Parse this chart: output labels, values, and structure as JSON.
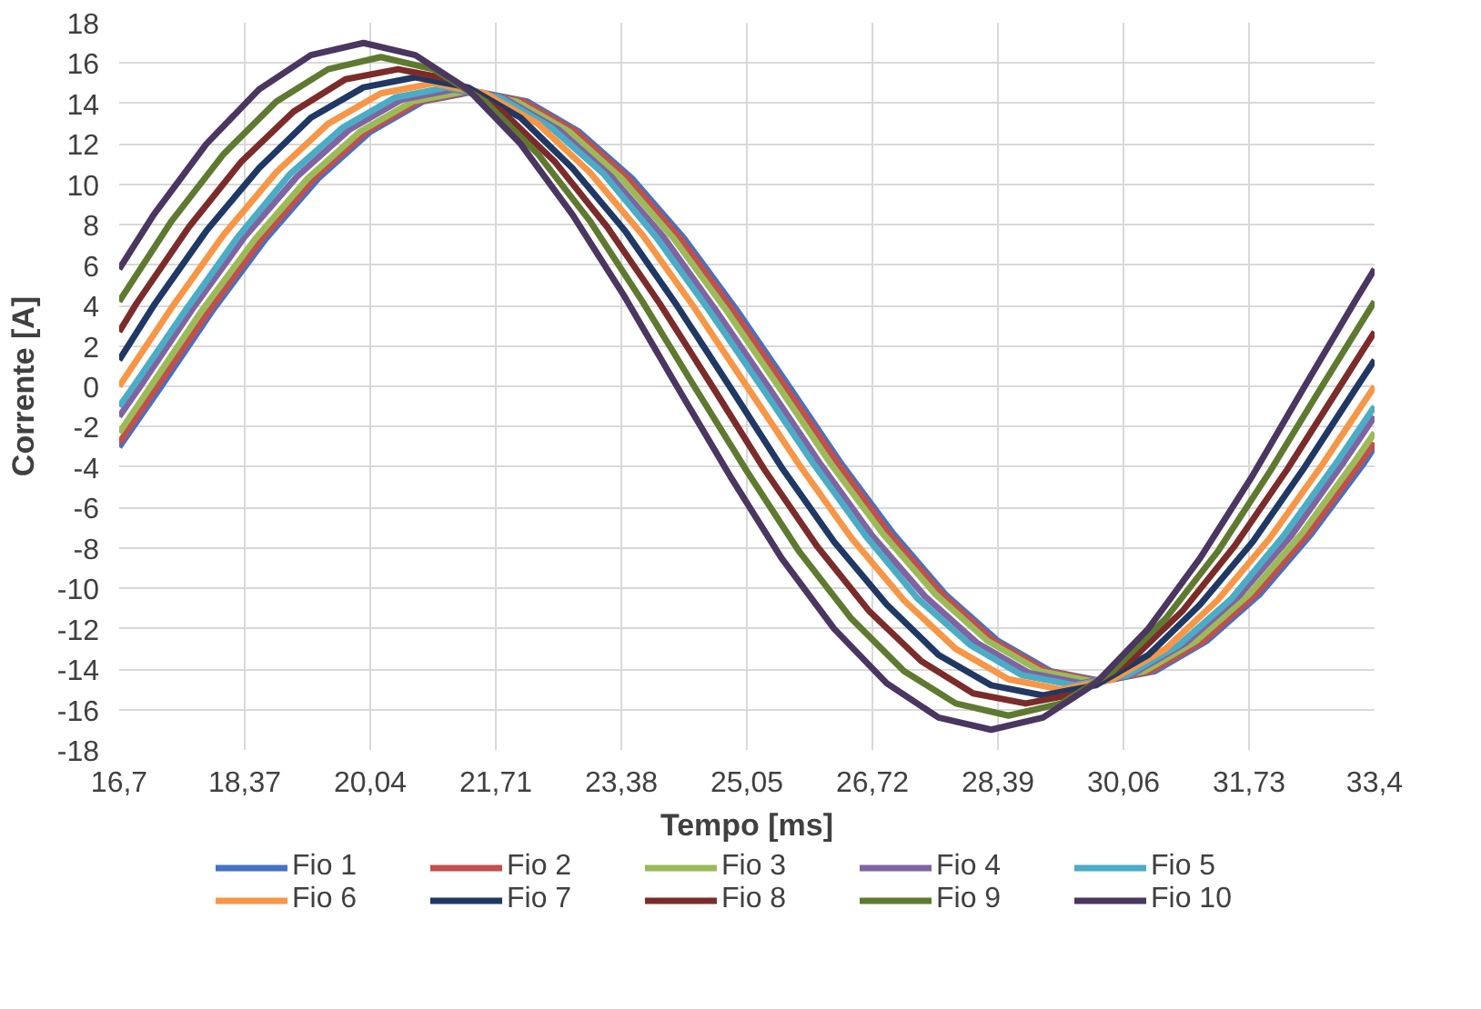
{
  "chart_data": {
    "type": "line",
    "xlabel": "Tempo [ms]",
    "ylabel": "Corrente [A]",
    "xlim": [
      16.7,
      33.4
    ],
    "ylim": [
      -18,
      18
    ],
    "xticks": [
      {
        "value": 16.7,
        "label": "16,7"
      },
      {
        "value": 18.37,
        "label": "18,37"
      },
      {
        "value": 20.04,
        "label": "20,04"
      },
      {
        "value": 21.71,
        "label": "21,71"
      },
      {
        "value": 23.38,
        "label": "23,38"
      },
      {
        "value": 25.05,
        "label": "25,05"
      },
      {
        "value": 26.72,
        "label": "26,72"
      },
      {
        "value": 28.39,
        "label": "28,39"
      },
      {
        "value": 30.06,
        "label": "30,06"
      },
      {
        "value": 31.73,
        "label": "31,73"
      },
      {
        "value": 33.4,
        "label": "33,4"
      }
    ],
    "yticks": [
      -18,
      -16,
      -14,
      -12,
      -10,
      -8,
      -6,
      -4,
      -2,
      0,
      2,
      4,
      6,
      8,
      10,
      12,
      14,
      16,
      18
    ],
    "grid": true,
    "legend": "bottom",
    "marker": "none",
    "line_style": "solid",
    "series": [
      {
        "name": "Fio 1",
        "color": "#4472c4",
        "x": [
          16.7,
          17.26,
          17.95,
          18.65,
          19.35,
          20.04,
          20.74,
          21.43,
          22.13,
          22.82,
          23.52,
          24.22,
          24.91,
          25.61,
          26.3,
          27.0,
          27.69,
          28.39,
          29.09,
          29.78,
          30.48,
          31.17,
          31.87,
          32.56,
          33.26,
          33.4
        ],
        "values": [
          -3.0,
          0,
          3.8,
          7.3,
          10.3,
          12.6,
          14.1,
          14.6,
          14.1,
          12.6,
          10.3,
          7.3,
          3.8,
          0,
          -3.8,
          -7.3,
          -10.3,
          -12.6,
          -14.1,
          -14.6,
          -14.1,
          -12.6,
          -10.3,
          -7.3,
          -3.8,
          -3.0
        ]
      },
      {
        "name": "Fio 2",
        "color": "#c0504d",
        "x": [
          16.7,
          17.21,
          17.91,
          18.6,
          19.3,
          19.99,
          20.69,
          21.39,
          22.08,
          22.78,
          23.47,
          24.17,
          24.86,
          25.56,
          26.26,
          26.95,
          27.65,
          28.34,
          29.04,
          29.74,
          30.43,
          31.13,
          31.82,
          32.52,
          33.21,
          33.4
        ],
        "values": [
          -2.8,
          0,
          3.8,
          7.3,
          10.3,
          12.6,
          14.1,
          14.6,
          14.1,
          12.6,
          10.3,
          7.3,
          3.8,
          0,
          -3.8,
          -7.3,
          -10.3,
          -12.6,
          -14.1,
          -14.6,
          -14.1,
          -12.6,
          -10.3,
          -7.3,
          -3.8,
          -2.8
        ]
      },
      {
        "name": "Fio 3",
        "color": "#9bbb59",
        "x": [
          16.7,
          17.12,
          17.81,
          18.51,
          19.21,
          19.9,
          20.6,
          21.29,
          21.99,
          22.69,
          23.38,
          24.08,
          24.77,
          25.47,
          26.16,
          26.86,
          27.56,
          28.25,
          28.95,
          29.64,
          30.34,
          31.03,
          31.73,
          32.43,
          33.12,
          33.4
        ],
        "values": [
          -2.3,
          0,
          3.8,
          7.3,
          10.3,
          12.6,
          14.1,
          14.6,
          14.1,
          12.6,
          10.3,
          7.3,
          3.8,
          0,
          -3.8,
          -7.3,
          -10.3,
          -12.6,
          -14.1,
          -14.6,
          -14.1,
          -12.6,
          -10.3,
          -7.3,
          -3.8,
          -2.3
        ]
      },
      {
        "name": "Fio 4",
        "color": "#8064a2",
        "x": [
          16.7,
          16.98,
          17.67,
          18.37,
          19.07,
          19.76,
          20.46,
          21.15,
          21.85,
          22.55,
          23.24,
          23.94,
          24.63,
          25.33,
          26.02,
          26.72,
          27.42,
          28.11,
          28.81,
          29.5,
          30.2,
          30.89,
          31.59,
          32.29,
          32.98,
          33.4
        ],
        "values": [
          -1.5,
          0,
          3.8,
          7.4,
          10.4,
          12.7,
          14.2,
          14.7,
          14.2,
          12.7,
          10.4,
          7.4,
          3.8,
          0,
          -3.8,
          -7.4,
          -10.4,
          -12.7,
          -14.2,
          -14.7,
          -14.2,
          -12.7,
          -10.4,
          -7.4,
          -3.8,
          -1.5
        ]
      },
      {
        "name": "Fio 5",
        "color": "#4bacc6",
        "x": [
          16.7,
          16.89,
          17.59,
          18.28,
          18.97,
          19.67,
          20.37,
          21.06,
          21.76,
          22.45,
          23.15,
          23.84,
          24.54,
          25.24,
          25.93,
          26.63,
          27.32,
          28.02,
          28.71,
          29.41,
          30.11,
          30.8,
          31.5,
          32.19,
          32.89,
          33.4
        ],
        "values": [
          -1.0,
          0,
          3.8,
          7.4,
          10.5,
          12.8,
          14.3,
          14.8,
          14.3,
          12.8,
          10.5,
          7.4,
          3.8,
          0,
          -3.8,
          -7.4,
          -10.5,
          -12.8,
          -14.3,
          -14.8,
          -14.3,
          -12.8,
          -10.5,
          -7.4,
          -3.8,
          -1.0
        ]
      },
      {
        "name": "Fio 6",
        "color": "#f79646",
        "x": [
          16.7,
          17.4,
          18.09,
          18.79,
          19.48,
          20.18,
          20.88,
          21.57,
          22.27,
          22.96,
          23.66,
          24.35,
          25.05,
          25.75,
          26.44,
          27.14,
          27.83,
          28.53,
          29.23,
          29.92,
          30.62,
          31.31,
          32.01,
          32.7,
          33.4
        ],
        "values": [
          0,
          3.9,
          7.5,
          10.6,
          13.0,
          14.5,
          15,
          14.5,
          13.0,
          10.6,
          7.5,
          3.9,
          0,
          -3.9,
          -7.5,
          -10.6,
          -13.0,
          -14.5,
          -15,
          -14.5,
          -13.0,
          -10.6,
          -7.5,
          -3.9,
          0
        ]
      },
      {
        "name": "Fio 7",
        "color": "#1f3864",
        "x": [
          16.7,
          17.16,
          17.86,
          18.56,
          19.25,
          19.95,
          20.64,
          21.34,
          22.04,
          22.73,
          23.43,
          24.12,
          24.82,
          25.51,
          26.21,
          26.91,
          27.6,
          28.3,
          28.99,
          29.69,
          30.39,
          31.08,
          31.78,
          32.47,
          33.17,
          33.4
        ],
        "values": [
          1.3,
          4.0,
          7.7,
          10.8,
          13.3,
          14.8,
          15.3,
          14.8,
          13.3,
          10.8,
          7.7,
          4.0,
          0,
          -4.0,
          -7.7,
          -10.8,
          -13.3,
          -14.8,
          -15.3,
          -14.8,
          -13.3,
          -10.8,
          -7.7,
          -4.0,
          0,
          1.3
        ]
      },
      {
        "name": "Fio 8",
        "color": "#7b2c2a",
        "x": [
          16.7,
          16.93,
          17.63,
          18.32,
          19.02,
          19.71,
          20.41,
          21.11,
          21.8,
          22.5,
          23.19,
          23.89,
          24.59,
          25.28,
          25.98,
          26.67,
          27.37,
          28.06,
          28.76,
          29.46,
          30.15,
          30.85,
          31.54,
          32.24,
          32.94,
          33.4
        ],
        "values": [
          2.7,
          4.1,
          7.9,
          11.1,
          13.6,
          15.2,
          15.7,
          15.2,
          13.6,
          11.1,
          7.9,
          4.1,
          0,
          -4.1,
          -7.9,
          -11.1,
          -13.6,
          -15.2,
          -15.7,
          -15.2,
          -13.6,
          -11.1,
          -7.9,
          -4.1,
          0,
          2.7
        ]
      },
      {
        "name": "Fio 9",
        "color": "#5f7a30",
        "x": [
          16.7,
          17.4,
          18.09,
          18.79,
          19.48,
          20.18,
          20.88,
          21.57,
          22.27,
          22.96,
          23.66,
          24.35,
          25.05,
          25.75,
          26.44,
          27.14,
          27.83,
          28.53,
          29.23,
          29.92,
          30.62,
          31.31,
          32.01,
          32.7,
          33.4
        ],
        "values": [
          4.2,
          8.2,
          11.5,
          14.1,
          15.7,
          16.3,
          15.7,
          14.1,
          11.5,
          8.2,
          4.2,
          0,
          -4.2,
          -8.2,
          -11.5,
          -14.1,
          -15.7,
          -16.3,
          -15.7,
          -14.1,
          -11.5,
          -8.2,
          -4.2,
          0,
          4.2
        ]
      },
      {
        "name": "Fio 10",
        "color": "#4a3660",
        "x": [
          16.7,
          17.16,
          17.86,
          18.56,
          19.25,
          19.95,
          20.64,
          21.34,
          22.04,
          22.73,
          23.43,
          24.12,
          24.82,
          25.51,
          26.21,
          26.91,
          27.6,
          28.3,
          28.99,
          29.69,
          30.39,
          31.08,
          31.78,
          32.47,
          33.17,
          33.4
        ],
        "values": [
          5.8,
          8.5,
          12.0,
          14.7,
          16.4,
          17,
          16.4,
          14.7,
          12.0,
          8.5,
          4.4,
          0,
          -4.4,
          -8.5,
          -12.0,
          -14.7,
          -16.4,
          -17,
          -16.4,
          -14.7,
          -12.0,
          -8.5,
          -4.4,
          0,
          4.4,
          5.8
        ]
      }
    ]
  }
}
